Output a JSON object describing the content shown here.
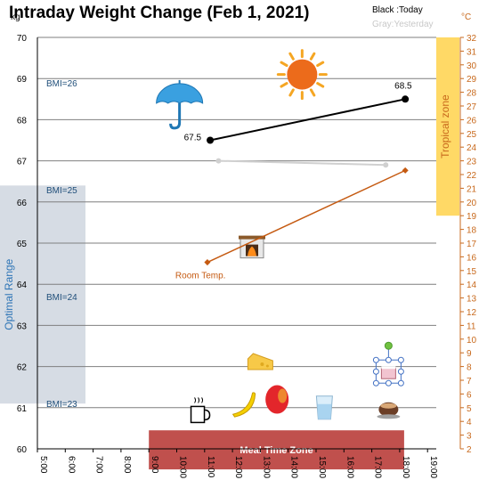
{
  "chart_data": {
    "type": "line",
    "title": "Intraday Weight Change (Feb 1, 2021)",
    "y_unit": "kg",
    "y2_unit": "°C",
    "legend": {
      "today": "Black :Today",
      "yesterday": "Gray:Yesterday"
    },
    "x_ticks": [
      "5:00",
      "6:00",
      "7:00",
      "8:00",
      "9:00",
      "10:00",
      "11:00",
      "12:00",
      "13:00",
      "14:00",
      "15:00",
      "16:00",
      "17:00",
      "18:00",
      "19:00"
    ],
    "x_range": [
      5,
      19.5
    ],
    "y_range": [
      60,
      70
    ],
    "y_ticks": [
      60,
      61,
      62,
      63,
      64,
      65,
      66,
      67,
      68,
      69,
      70
    ],
    "y2_range": [
      2,
      32
    ],
    "y2_ticks": [
      2,
      3,
      4,
      5,
      6,
      7,
      8,
      9,
      10,
      11,
      12,
      13,
      14,
      15,
      16,
      17,
      18,
      19,
      20,
      21,
      22,
      23,
      24,
      25,
      26,
      27,
      28,
      29,
      30,
      31,
      32
    ],
    "series": [
      {
        "key": "today",
        "color": "#000000",
        "axis": "left",
        "points": [
          {
            "x": 11.2,
            "y": 67.5,
            "label": "67.5"
          },
          {
            "x": 18.2,
            "y": 68.5,
            "label": "68.5"
          }
        ]
      },
      {
        "key": "yesterday",
        "color": "#d0d0d0",
        "axis": "left",
        "points": [
          {
            "x": 11.5,
            "y": 67.0
          },
          {
            "x": 17.5,
            "y": 66.9
          }
        ]
      },
      {
        "key": "room_temp",
        "name": "Room Temp.",
        "color": "#c55a11",
        "axis": "right",
        "points": [
          {
            "x": 11.1,
            "y": 15.6
          },
          {
            "x": 18.2,
            "y": 22.3
          }
        ]
      }
    ],
    "bmi_lines": [
      {
        "label": "BMI=26",
        "y": 68.9
      },
      {
        "label": "BMI=25",
        "y": 66.3
      },
      {
        "label": "BMI=24",
        "y": 63.7
      },
      {
        "label": "BMI=23",
        "y": 61.1
      }
    ],
    "optimal_range": {
      "label": "Optimal Range",
      "y_from": 61.1,
      "y_to": 66.4,
      "x_from": 4.0,
      "x_to": 6.7,
      "color": "#d6dce4"
    },
    "tropical_zone": {
      "label": "Tropical zone",
      "y2_from": 19,
      "y2_to": 32,
      "color": "#ffd966"
    },
    "meal_zone": {
      "label": "Meal Time Zone",
      "x_from": 9.0,
      "x_to": 18.0,
      "y_from": 59.5,
      "y_to": 60.45,
      "color": "#c0504d"
    },
    "icons": [
      {
        "name": "umbrella-icon",
        "x": 10.1,
        "y": 68.4
      },
      {
        "name": "sun-icon",
        "x": 14.5,
        "y": 69.1
      },
      {
        "name": "fireplace-icon",
        "x": 12.7,
        "y": 64.9
      },
      {
        "name": "cheese-icon",
        "x": 13.0,
        "y": 62.1
      },
      {
        "name": "coffee-cup-icon",
        "x": 10.8,
        "y": 60.9
      },
      {
        "name": "banana-icon",
        "x": 12.4,
        "y": 61.1
      },
      {
        "name": "apple-icon",
        "x": 13.6,
        "y": 61.2
      },
      {
        "name": "water-glass-icon",
        "x": 15.3,
        "y": 61.0
      },
      {
        "name": "cake-icon",
        "x": 17.6,
        "y": 61.9
      },
      {
        "name": "hot-drink-icon",
        "x": 17.6,
        "y": 61.0
      }
    ]
  }
}
